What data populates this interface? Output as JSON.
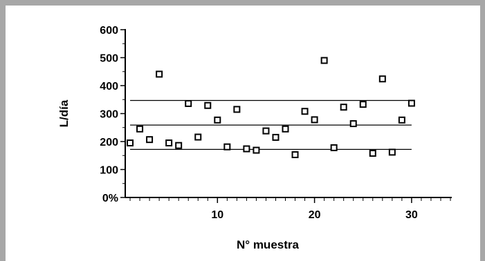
{
  "chart_data": {
    "type": "scatter",
    "title": "",
    "xlabel": "N° muestra",
    "ylabel": "L/día",
    "xlim": [
      0,
      34
    ],
    "ylim": [
      0,
      600
    ],
    "x_ticks": [
      10,
      20,
      30
    ],
    "x_tick_labels": [
      "10",
      "20",
      "30"
    ],
    "y_ticks": [
      0,
      100,
      200,
      300,
      400,
      500,
      600
    ],
    "y_tick_labels": [
      "0%",
      "100",
      "200",
      "300",
      "400",
      "500",
      "600"
    ],
    "grid": false,
    "legend": "none",
    "marker": "open-square",
    "color": "#000000",
    "series": [
      {
        "x": [
          1,
          2,
          3,
          4,
          5,
          6,
          7,
          8,
          9,
          10,
          11,
          12,
          13,
          14,
          15,
          16,
          17,
          18,
          19,
          20,
          21,
          22,
          23,
          24,
          25,
          26,
          27,
          28,
          29,
          30
        ],
        "y": [
          195,
          245,
          207,
          441,
          195,
          186,
          336,
          216,
          329,
          277,
          181,
          315,
          174,
          169,
          238,
          215,
          245,
          153,
          308,
          278,
          490,
          178,
          323,
          264,
          333,
          158,
          424,
          162,
          277,
          337
        ]
      }
    ],
    "reference_lines": [
      {
        "y": 347,
        "x_range": [
          1,
          30
        ]
      },
      {
        "y": 259,
        "x_range": [
          1,
          30
        ]
      },
      {
        "y": 172,
        "x_range": [
          1,
          30
        ]
      }
    ]
  }
}
